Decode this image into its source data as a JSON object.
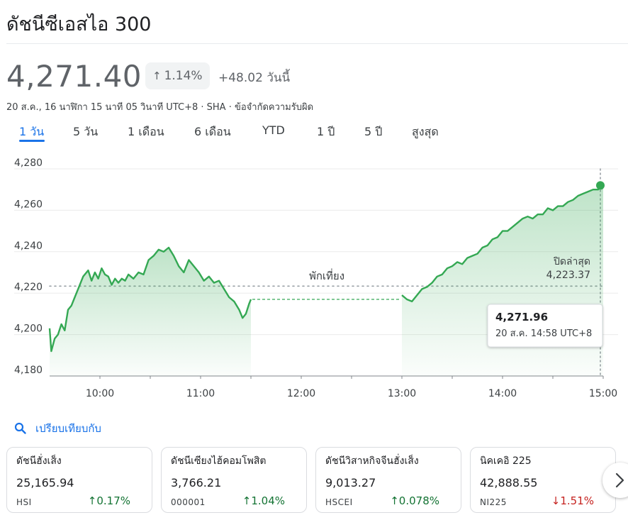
{
  "header": {
    "title": "ดัชนีซีเอสไอ 300",
    "price": "4,271.40",
    "change_pct": "1.14%",
    "change_abs": "+48.02 วันนี้",
    "meta": "20 ส.ค., 16 นาฬิกา 15 นาที 05 วินาที UTC+8 · SHA · ข้อจำกัดความรับผิด"
  },
  "tabs": [
    {
      "label": "1 วัน",
      "active": true
    },
    {
      "label": "5 วัน"
    },
    {
      "label": "1 เดือน"
    },
    {
      "label": "6 เดือน"
    },
    {
      "label": "YTD"
    },
    {
      "label": "1 ปี"
    },
    {
      "label": "5 ปี"
    },
    {
      "label": "สูงสุด"
    }
  ],
  "chart_data": {
    "type": "area",
    "y_ticks": [
      "4,180",
      "4,200",
      "4,220",
      "4,240",
      "4,260",
      "4,280"
    ],
    "x_ticks": [
      "10:00",
      "11:00",
      "12:00",
      "13:00",
      "14:00",
      "15:00"
    ],
    "ylim": [
      4180,
      4280
    ],
    "xlim": [
      "09:30",
      "15:00"
    ],
    "grid": true,
    "color": "#34a853",
    "break_label": "พักเที่ยง",
    "break_level": 4217,
    "prev_close": {
      "label": "ปิดล่าสุด",
      "value": "4,223.37",
      "level": 4223.37
    },
    "tooltip": {
      "value": "4,271.96",
      "time": "20 ส.ค. 14:58 UTC+8"
    },
    "last_point": {
      "x": "15:00",
      "y": 4272
    },
    "series": [
      {
        "x": [
          "09:30",
          "09:31",
          "09:33",
          "09:35",
          "09:37",
          "09:39",
          "09:41",
          "09:43",
          "09:45",
          "09:47",
          "09:50",
          "09:53",
          "09:55",
          "09:57",
          "09:59",
          "10:01",
          "10:03",
          "10:05",
          "10:07",
          "10:09",
          "10:11",
          "10:13",
          "10:15",
          "10:17",
          "10:20",
          "10:23",
          "10:26",
          "10:29",
          "10:32",
          "10:35",
          "10:38",
          "10:41",
          "10:44",
          "10:47",
          "10:50",
          "10:53",
          "10:56",
          "10:59",
          "11:02",
          "11:05",
          "11:08",
          "11:11",
          "11:14",
          "11:17",
          "11:20",
          "11:23",
          "11:25",
          "11:27",
          "11:29",
          "11:30",
          "13:00",
          "13:03",
          "13:06",
          "13:09",
          "13:12",
          "13:15",
          "13:18",
          "13:21",
          "13:24",
          "13:27",
          "13:30",
          "13:33",
          "13:36",
          "13:39",
          "13:42",
          "13:45",
          "13:48",
          "13:51",
          "13:54",
          "13:57",
          "14:00",
          "14:03",
          "14:06",
          "14:09",
          "14:12",
          "14:15",
          "14:18",
          "14:21",
          "14:24",
          "14:27",
          "14:30",
          "14:33",
          "14:36",
          "14:39",
          "14:42",
          "14:45",
          "14:48",
          "14:51",
          "14:54",
          "14:57",
          "15:00"
        ],
        "y": [
          4203,
          4192,
          4198,
          4200,
          4205,
          4202,
          4212,
          4214,
          4218,
          4222,
          4228,
          4231,
          4226,
          4230,
          4227,
          4232,
          4229,
          4228,
          4224,
          4227,
          4225,
          4227,
          4226,
          4229,
          4227,
          4230,
          4229,
          4236,
          4238,
          4241,
          4240,
          4242,
          4238,
          4233,
          4230,
          4236,
          4233,
          4230,
          4226,
          4228,
          4225,
          4226,
          4222,
          4218,
          4216,
          4212,
          4208,
          4210,
          4215,
          4217,
          4219,
          4217,
          4216,
          4219,
          4222,
          4223,
          4225,
          4228,
          4229,
          4232,
          4233,
          4235,
          4234,
          4237,
          4238,
          4239,
          4242,
          4243,
          4246,
          4247,
          4250,
          4250,
          4252,
          4254,
          4256,
          4257,
          4256,
          4258,
          4258,
          4261,
          4260,
          4262,
          4262,
          4264,
          4265,
          4267,
          4268,
          4269,
          4270,
          4270,
          4272
        ]
      }
    ]
  },
  "compare": {
    "label": "เปรียบเทียบกับ"
  },
  "cards": [
    {
      "name": "ดัชนีฮั่งเส็ง",
      "value": "25,165.94",
      "ticker": "HSI",
      "change": "0.17%",
      "dir": "up"
    },
    {
      "name": "ดัชนีเซียงไฮ้คอมโพสิต",
      "value": "3,766.21",
      "ticker": "000001",
      "change": "1.04%",
      "dir": "up"
    },
    {
      "name": "ดัชนีวิสาหกิจจีนฮั่งเส็ง",
      "value": "9,013.27",
      "ticker": "HSCEI",
      "change": "0.078%",
      "dir": "up"
    },
    {
      "name": "นิคเคอิ 225",
      "value": "42,888.55",
      "ticker": "NI225",
      "change": "1.51%",
      "dir": "down"
    }
  ]
}
